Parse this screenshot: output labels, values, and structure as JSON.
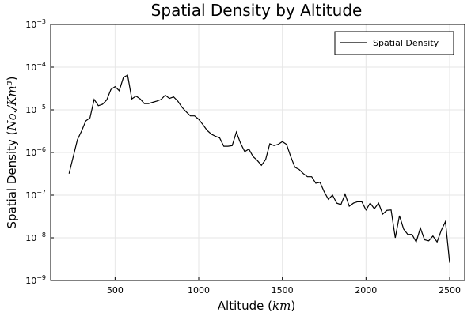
{
  "chart_data": {
    "type": "line",
    "title": "Spatial Density by Altitude",
    "xlabel": {
      "prefix": "Altitude (",
      "math": "km",
      "suffix": ")"
    },
    "ylabel": {
      "prefix": "Spatial Density (",
      "math": "No./Km³",
      "suffix": ")"
    },
    "xlim": [
      115,
      2590
    ],
    "xticks": [
      500,
      1000,
      1500,
      2000,
      2500
    ],
    "xtick_labels": [
      "500",
      "1000",
      "1500",
      "2000",
      "2500"
    ],
    "yscale": "log",
    "ylim": [
      1e-09,
      0.001
    ],
    "yticks": [
      1e-09,
      1e-08,
      1e-07,
      1e-06,
      1e-05,
      0.0001,
      0.001
    ],
    "ytick_labels": [
      {
        "base": "10",
        "exp": "−9"
      },
      {
        "base": "10",
        "exp": "−8"
      },
      {
        "base": "10",
        "exp": "−7"
      },
      {
        "base": "10",
        "exp": "−6"
      },
      {
        "base": "10",
        "exp": "−5"
      },
      {
        "base": "10",
        "exp": "−4"
      },
      {
        "base": "10",
        "exp": "−3"
      }
    ],
    "grid": true,
    "legend": {
      "placement": "top-right",
      "entries": [
        "Spatial Density"
      ]
    },
    "series": [
      {
        "name": "Spatial Density",
        "color": "#000000",
        "x": [
          225,
          250,
          275,
          300,
          325,
          350,
          375,
          400,
          425,
          450,
          475,
          500,
          525,
          550,
          575,
          600,
          625,
          650,
          675,
          700,
          725,
          750,
          775,
          800,
          825,
          850,
          875,
          900,
          925,
          950,
          975,
          1000,
          1025,
          1050,
          1075,
          1100,
          1125,
          1150,
          1175,
          1200,
          1225,
          1250,
          1275,
          1300,
          1325,
          1350,
          1375,
          1400,
          1425,
          1450,
          1475,
          1500,
          1525,
          1550,
          1575,
          1600,
          1625,
          1650,
          1675,
          1700,
          1725,
          1750,
          1775,
          1800,
          1825,
          1850,
          1875,
          1900,
          1925,
          1950,
          1975,
          2000,
          2025,
          2050,
          2075,
          2100,
          2125,
          2150,
          2175,
          2200,
          2225,
          2250,
          2275,
          2300,
          2325,
          2350,
          2375,
          2400,
          2425,
          2450,
          2475,
          2500
        ],
        "y": [
          3.2e-07,
          8e-07,
          2e-06,
          3.2e-06,
          5.5e-06,
          6.5e-06,
          1.75e-05,
          1.25e-05,
          1.35e-05,
          1.7e-05,
          3e-05,
          3.5e-05,
          2.8e-05,
          5.8e-05,
          6.5e-05,
          1.8e-05,
          2.1e-05,
          1.8e-05,
          1.4e-05,
          1.4e-05,
          1.5e-05,
          1.6e-05,
          1.75e-05,
          2.2e-05,
          1.85e-05,
          2e-05,
          1.6e-05,
          1.15e-05,
          9e-06,
          7.2e-06,
          7.2e-06,
          6e-06,
          4.5e-06,
          3.3e-06,
          2.7e-06,
          2.4e-06,
          2.2e-06,
          1.4e-06,
          1.4e-06,
          1.45e-06,
          3e-06,
          1.65e-06,
          1.05e-06,
          1.2e-06,
          8e-07,
          6.5e-07,
          5e-07,
          6.8e-07,
          1.6e-06,
          1.45e-06,
          1.55e-06,
          1.8e-06,
          1.55e-06,
          8e-07,
          4.5e-07,
          4e-07,
          3.2e-07,
          2.7e-07,
          2.7e-07,
          1.9e-07,
          2e-07,
          1.2e-07,
          8e-08,
          1e-07,
          6.5e-08,
          6e-08,
          1.05e-07,
          5.5e-08,
          6.5e-08,
          7e-08,
          7e-08,
          4.5e-08,
          6.5e-08,
          4.8e-08,
          6.5e-08,
          3.6e-08,
          4.4e-08,
          4.5e-08,
          1e-08,
          3.3e-08,
          1.6e-08,
          1.2e-08,
          1.2e-08,
          8e-09,
          1.7e-08,
          9e-09,
          8.5e-09,
          1.1e-08,
          8e-09,
          1.5e-08,
          2.4e-08,
          2.6e-09
        ]
      }
    ]
  }
}
